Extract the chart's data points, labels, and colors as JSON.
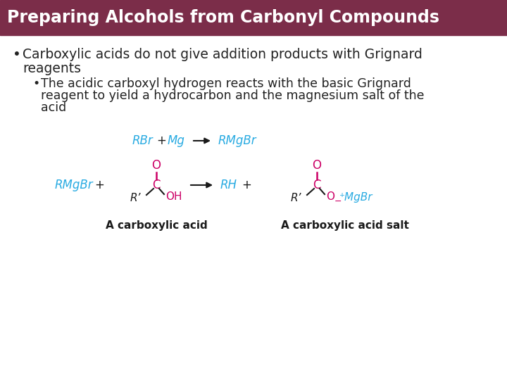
{
  "title": "Preparing Alcohols from Carbonyl Compounds",
  "title_bg_color": "#7B2D49",
  "title_text_color": "#FFFFFF",
  "title_fontsize": 17,
  "bg_color": "#FFFFFF",
  "bullet_color": "#222222",
  "bullet_fontsize": 13.5,
  "subbullet_fontsize": 12.5,
  "cyan_color": "#29ABE2",
  "magenta_color": "#CC0066",
  "black_color": "#1A1A1A",
  "label1": "A carboxylic acid",
  "label2": "A carboxylic acid salt"
}
